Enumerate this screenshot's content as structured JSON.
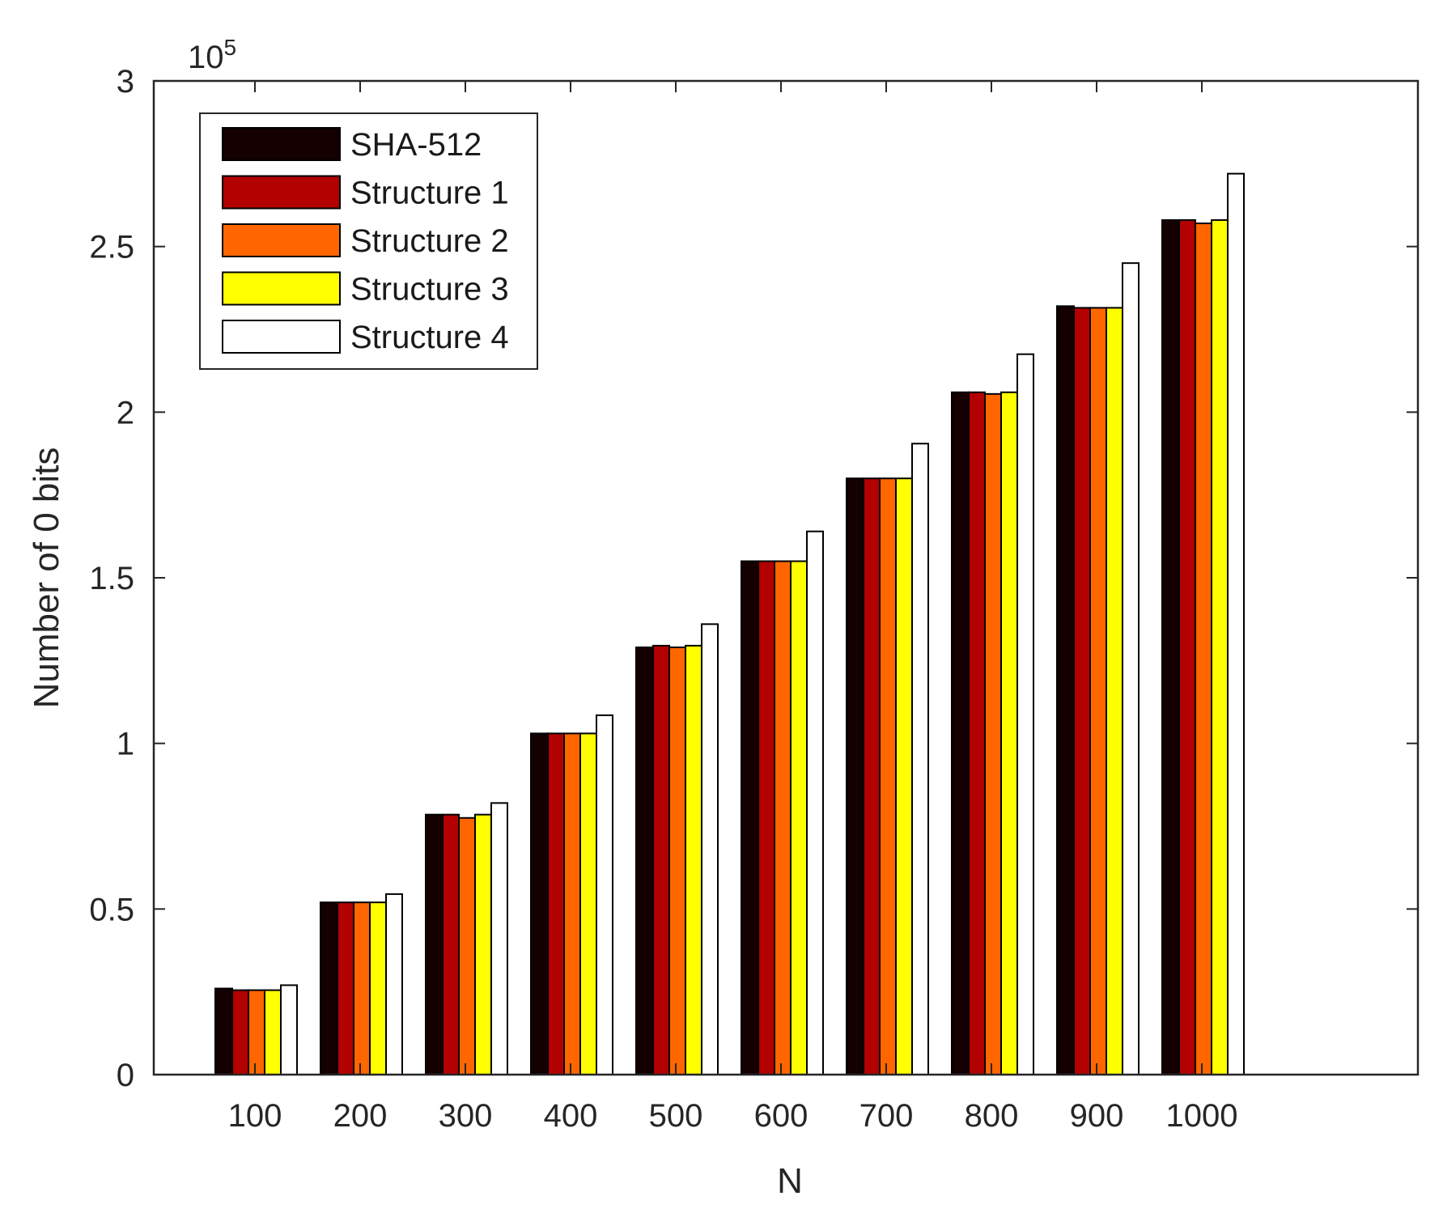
{
  "chart_data": {
    "type": "bar",
    "xlabel": "N",
    "ylabel": "Number of 0 bits",
    "y_exponent_label": "10",
    "y_exponent_power": "5",
    "categories": [
      "100",
      "200",
      "300",
      "400",
      "500",
      "600",
      "700",
      "800",
      "900",
      "1000"
    ],
    "ylim": [
      0,
      300000
    ],
    "yticks": [
      0,
      50000,
      100000,
      150000,
      200000,
      250000,
      300000
    ],
    "ytick_labels": [
      "0",
      "0.5",
      "1",
      "1.5",
      "2",
      "2.5",
      "3"
    ],
    "grid": false,
    "legend_position": "top-left",
    "series": [
      {
        "name": "SHA-512",
        "color": "#140000",
        "values": [
          26000,
          52000,
          78500,
          103000,
          129000,
          155000,
          180000,
          206000,
          232000,
          258000
        ]
      },
      {
        "name": "Structure 1",
        "color": "#b30000",
        "values": [
          25500,
          52000,
          78500,
          103000,
          129500,
          155000,
          180000,
          206000,
          231500,
          258000
        ]
      },
      {
        "name": "Structure 2",
        "color": "#ff6600",
        "values": [
          25500,
          52000,
          77500,
          103000,
          129000,
          155000,
          180000,
          205500,
          231500,
          257000
        ]
      },
      {
        "name": "Structure 3",
        "color": "#ffff00",
        "values": [
          25500,
          52000,
          78500,
          103000,
          129500,
          155000,
          180000,
          206000,
          231500,
          258000
        ]
      },
      {
        "name": "Structure 4",
        "color": "#ffffff",
        "values": [
          27000,
          54500,
          82000,
          108500,
          136000,
          164000,
          190500,
          217500,
          245000,
          272000
        ]
      }
    ]
  }
}
